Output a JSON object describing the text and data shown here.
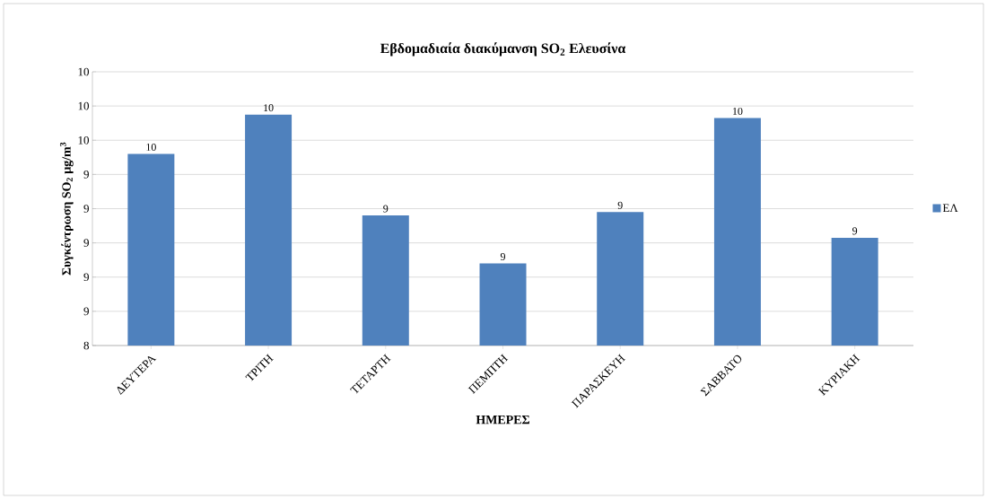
{
  "chart_data": {
    "type": "bar",
    "title": "Εβδομαδιαία διακύμανση SO$_{2}$ Ελευσίνα",
    "xlabel": "ΗΜΕΡΕΣ",
    "ylabel": "Συγκέντρωση SO$_{2}$ μg/m$^{3}$",
    "categories": [
      "ΔΕΥΤΕΡΑ",
      "ΤΡΙΤΗ",
      "ΤΕΤΑΡΤΗ",
      "ΠΕΜΠΤΗ",
      "ΠΑΡΑΣΚΕΥΗ",
      "ΣΑΒΒΑΤΟ",
      "ΚΥΡΙΑΚΗ"
    ],
    "series": [
      {
        "name": "ΕΛ",
        "color": "#4f81bd",
        "values": [
          9.52,
          9.75,
          9.16,
          8.88,
          9.18,
          9.73,
          9.03
        ],
        "value_labels": [
          "10",
          "10",
          "9",
          "9",
          "9",
          "10",
          "9"
        ]
      }
    ],
    "ylim": [
      8.4,
      10.0
    ],
    "yticks": [
      {
        "value": 8.4,
        "label": "8"
      },
      {
        "value": 8.6,
        "label": "9"
      },
      {
        "value": 8.8,
        "label": "9"
      },
      {
        "value": 9.0,
        "label": "9"
      },
      {
        "value": 9.2,
        "label": "9"
      },
      {
        "value": 9.4,
        "label": "9"
      },
      {
        "value": 9.6,
        "label": "10"
      },
      {
        "value": 9.8,
        "label": "10"
      },
      {
        "value": 10.0,
        "label": "10"
      }
    ],
    "grid": "y",
    "legend": "right"
  }
}
